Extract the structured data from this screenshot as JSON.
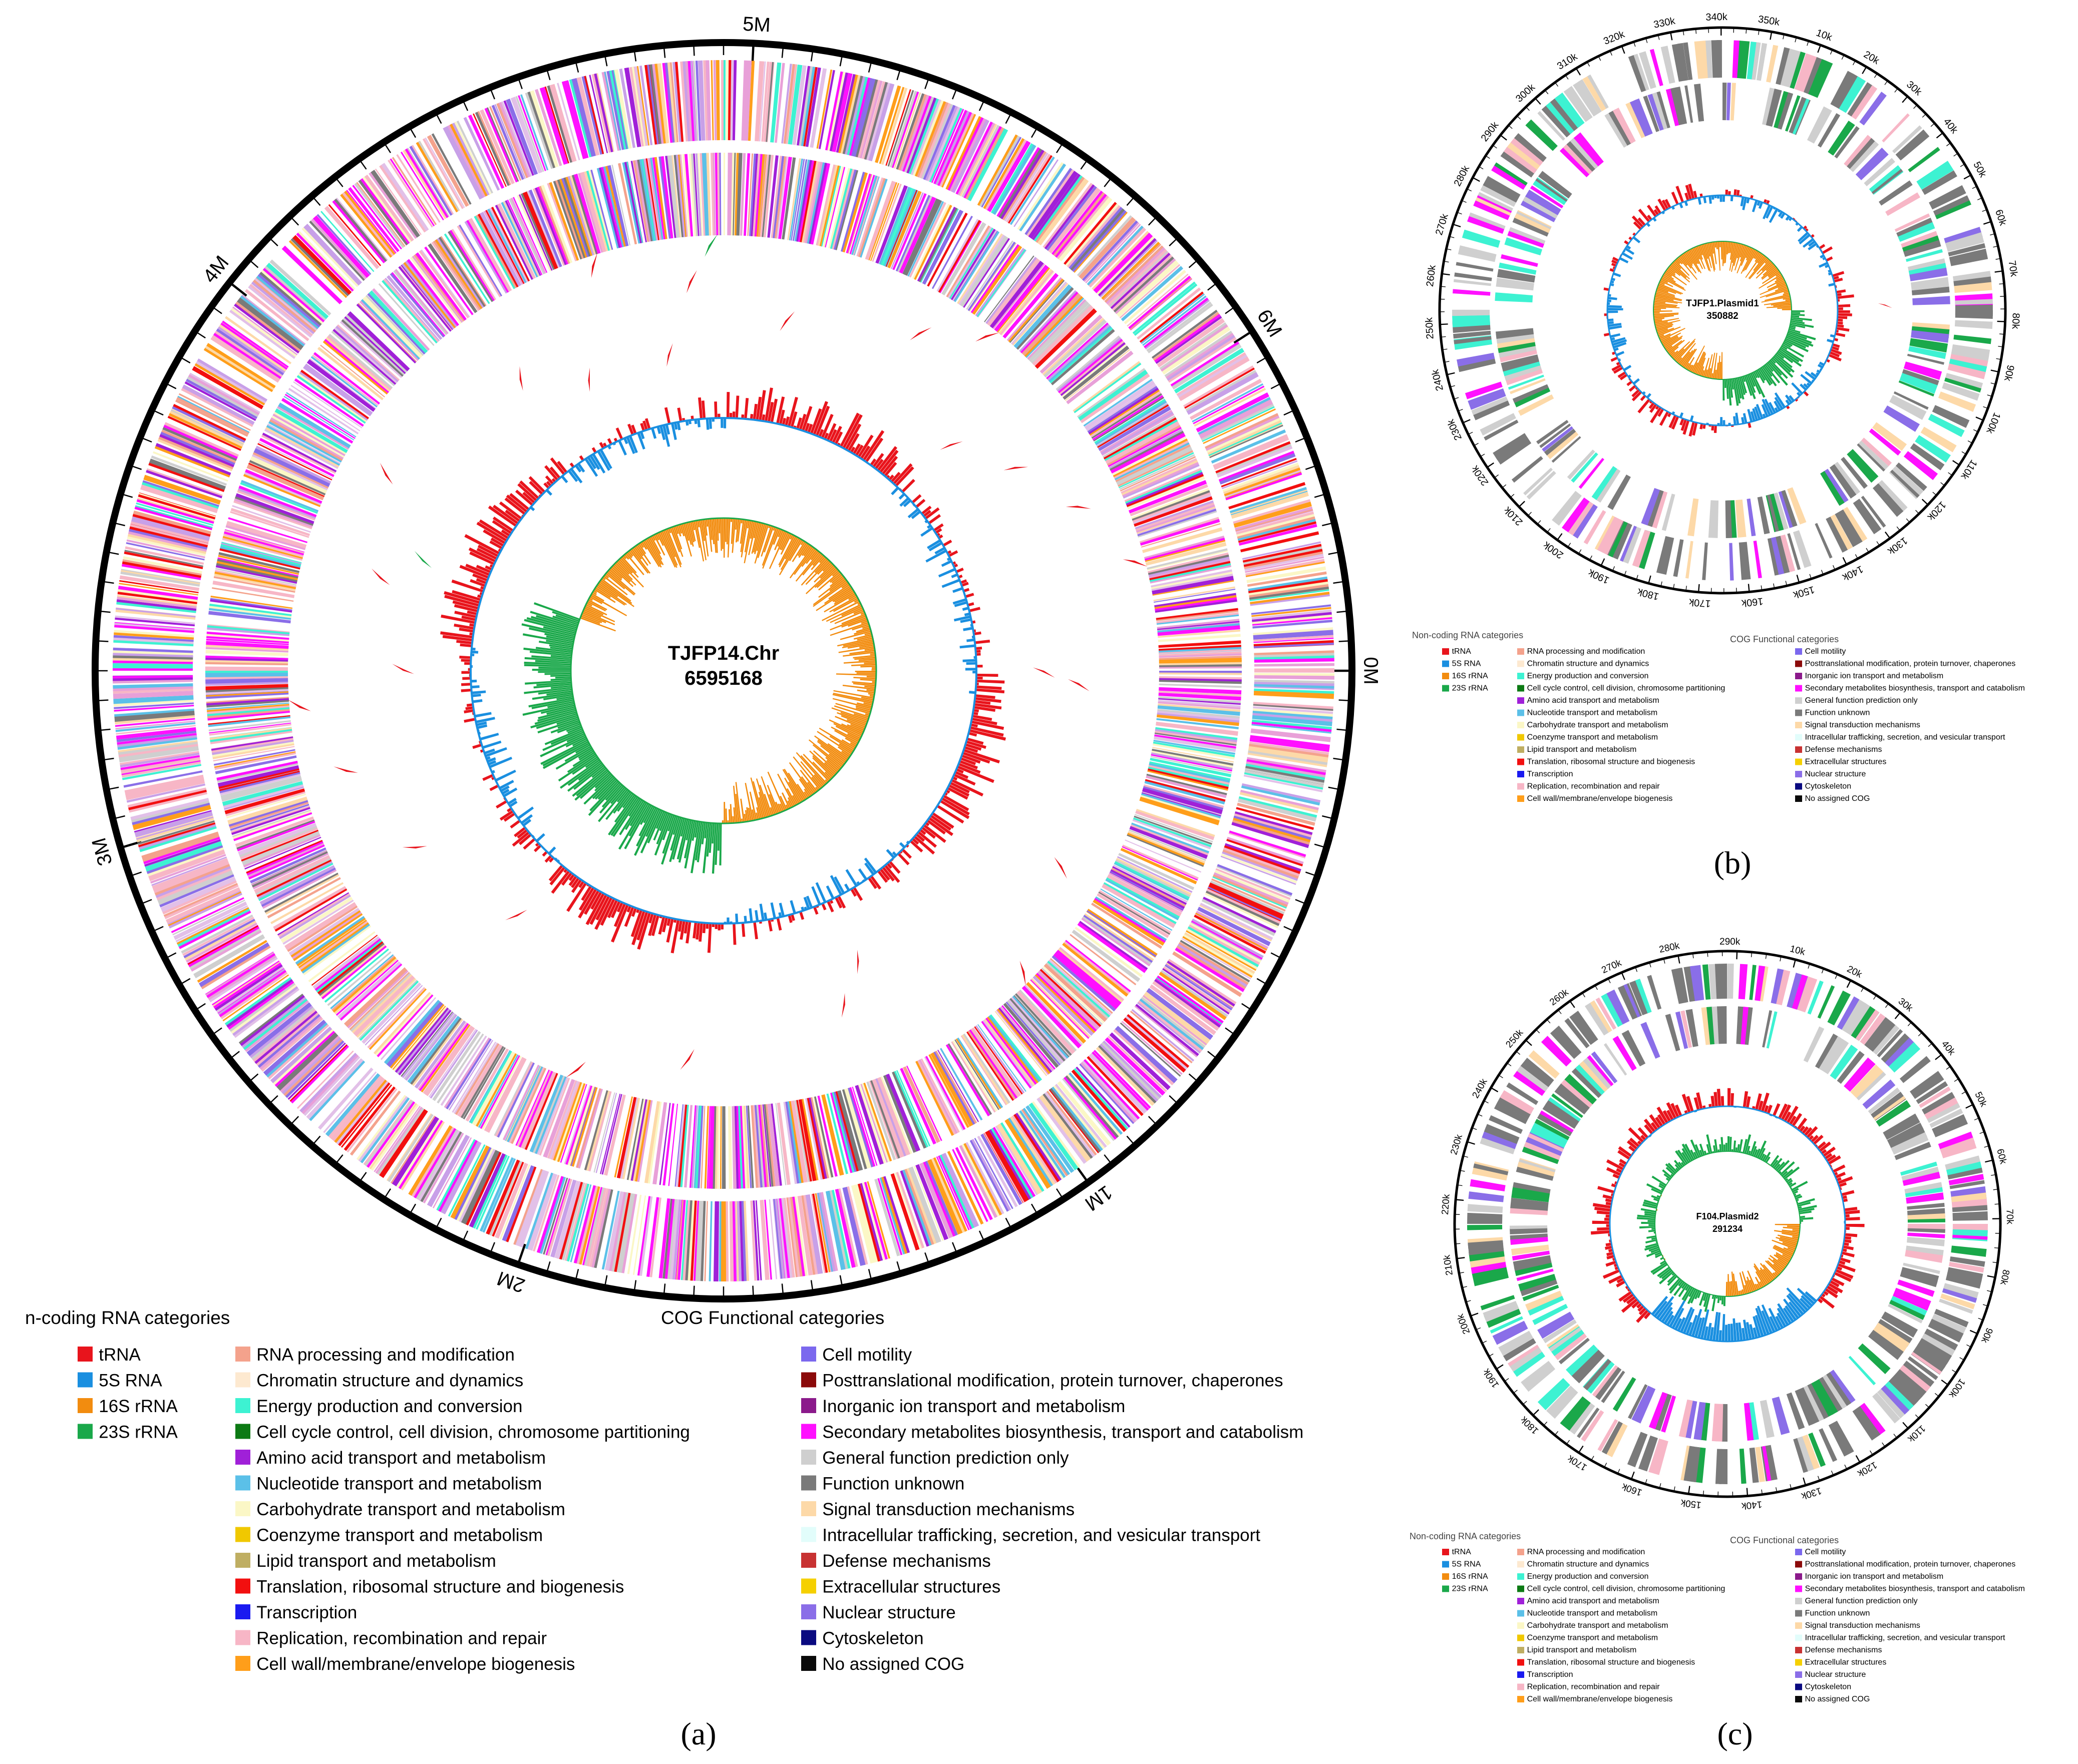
{
  "panels": {
    "a": {
      "center_title": "TJFP14.Chr",
      "center_size": "6595168",
      "panel_label": "(a)",
      "axis_labels": [
        "0M",
        "1M",
        "2M",
        "3M",
        "4M",
        "5M",
        "6M"
      ],
      "legend": {
        "ncrna_title": "n-coding RNA categories",
        "cog_title": "COG Functional categories"
      }
    },
    "b": {
      "center_title": "TJFP1.Plasmid1",
      "center_size": "350882",
      "panel_label": "(b)",
      "axis_labels": [
        "10k",
        "20k",
        "30k",
        "40k",
        "50k",
        "60k",
        "70k",
        "80k",
        "90k",
        "100k",
        "110k",
        "120k",
        "130k",
        "140k",
        "150k",
        "160k",
        "170k",
        "180k",
        "190k",
        "200k",
        "210k",
        "220k",
        "230k",
        "240k",
        "250k",
        "260k",
        "270k",
        "280k",
        "290k",
        "300k",
        "310k",
        "320k",
        "330k",
        "340k",
        "350k"
      ],
      "legend": {
        "ncrna_title": "Non-coding RNA categories",
        "cog_title": "COG Functional categories"
      }
    },
    "c": {
      "center_title": "F104.Plasmid2",
      "center_size": "291234",
      "panel_label": "(c)",
      "axis_labels": [
        "10k",
        "20k",
        "30k",
        "40k",
        "50k",
        "60k",
        "70k",
        "80k",
        "90k",
        "100k",
        "110k",
        "120k",
        "130k",
        "140k",
        "150k",
        "160k",
        "170k",
        "180k",
        "190k",
        "200k",
        "210k",
        "220k",
        "230k",
        "240k",
        "250k",
        "260k",
        "270k",
        "280k",
        "290k"
      ],
      "legend": {
        "ncrna_title": "Non-coding RNA categories",
        "cog_title": "COG Functional categories"
      }
    }
  },
  "ncrna_categories": [
    {
      "label": "tRNA",
      "color": "#e8141c"
    },
    {
      "label": "5S RNA",
      "color": "#1a8fe0"
    },
    {
      "label": "16S rRNA",
      "color": "#f28c0f"
    },
    {
      "label": "23S rRNA",
      "color": "#1aa84a"
    }
  ],
  "cog_categories_col1": [
    {
      "label": "RNA processing and modification",
      "color": "#f4a28c"
    },
    {
      "label": "Chromatin structure and dynamics",
      "color": "#fde9d0"
    },
    {
      "label": "Energy production and conversion",
      "color": "#3df2d2"
    },
    {
      "label": "Cell cycle control, cell division, chromosome partitioning",
      "color": "#0c7a14"
    },
    {
      "label": "Amino acid transport and metabolism",
      "color": "#a020d8"
    },
    {
      "label": "Nucleotide transport and metabolism",
      "color": "#5bc0e8"
    },
    {
      "label": "Carbohydrate transport and metabolism",
      "color": "#fbf7c6"
    },
    {
      "label": "Coenzyme transport and metabolism",
      "color": "#f0c800"
    },
    {
      "label": "Lipid transport and metabolism",
      "color": "#bfae62"
    },
    {
      "label": "Translation, ribosomal structure and biogenesis",
      "color": "#f20f0f"
    },
    {
      "label": "Transcription",
      "color": "#1a1af0"
    },
    {
      "label": "Replication, recombination and repair",
      "color": "#f7b6c6"
    },
    {
      "label": "Cell wall/membrane/envelope biogenesis",
      "color": "#ff9e1a"
    }
  ],
  "cog_categories_col2": [
    {
      "label": "Cell motility",
      "color": "#7b68ee"
    },
    {
      "label": "Posttranslational modification, protein turnover, chaperones",
      "color": "#8b0a0a"
    },
    {
      "label": "Inorganic ion transport and metabolism",
      "color": "#8b1a8b"
    },
    {
      "label": "Secondary metabolites biosynthesis, transport and catabolism",
      "color": "#ff10ff"
    },
    {
      "label": "General function prediction only",
      "color": "#cfcfcf"
    },
    {
      "label": "Function unknown",
      "color": "#7a7a7a"
    },
    {
      "label": "Signal transduction mechanisms",
      "color": "#fdd9a8"
    },
    {
      "label": "Intracellular trafficking, secretion, and vesicular transport",
      "color": "#e2fdfb"
    },
    {
      "label": "Defense mechanisms",
      "color": "#c83232"
    },
    {
      "label": "Extracellular structures",
      "color": "#f5d000"
    },
    {
      "label": "Nuclear structure",
      "color": "#8a6ee8"
    },
    {
      "label": "Cytoskeleton",
      "color": "#0a0a80"
    },
    {
      "label": "No assigned COG",
      "color": "#0a0a0a"
    }
  ],
  "track_colors": {
    "gc_skew_pos": "#1aa84a",
    "gc_skew_neg": "#f28c0f",
    "gc_content_pos": "#e8141c",
    "gc_content_neg": "#1a8fe0",
    "ncrna_marker": "#e8141c",
    "ncrna_marker_alt": "#1aa84a"
  }
}
